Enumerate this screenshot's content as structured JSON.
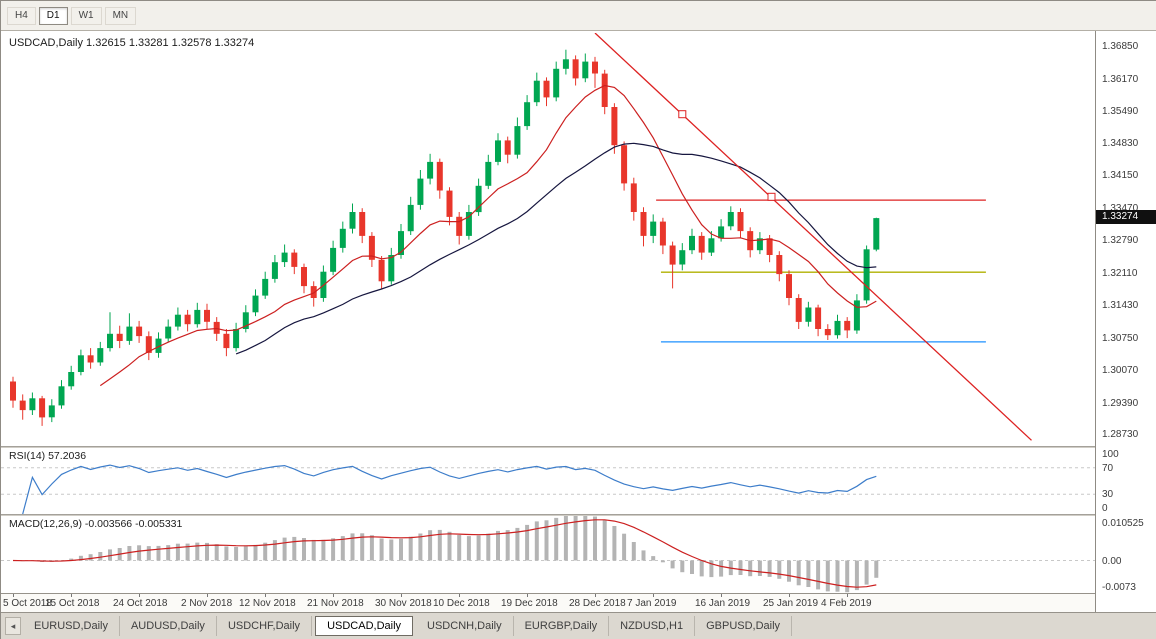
{
  "toolbar": {
    "period_tabs": [
      {
        "label": "H4",
        "active": false
      },
      {
        "label": "D1",
        "active": true
      },
      {
        "label": "W1",
        "active": false
      },
      {
        "label": "MN",
        "active": false
      }
    ]
  },
  "chart": {
    "symbol_label": "USDCAD,Daily",
    "ohlc_label": "1.32615 1.33281 1.32578 1.33274",
    "current_price": "1.33274",
    "price_axis_labels": [
      "1.36850",
      "1.36170",
      "1.35490",
      "1.34830",
      "1.34150",
      "1.33470",
      "1.32790",
      "1.32110",
      "1.31430",
      "1.30750",
      "1.30070",
      "1.29390",
      "1.28730"
    ],
    "price_range": {
      "min": 1.285,
      "max": 1.3715
    },
    "colors": {
      "up": "#00a651",
      "down": "#e8362b",
      "ma_fast": "#cc2020",
      "ma_slow": "#16163f",
      "object_red": "#dd2222",
      "hline_yellow": "#b0b000",
      "hline_blue": "#1e90ff"
    },
    "ma_fast_period": 10,
    "ma_slow_period": 24,
    "candles": [
      [
        1.2985,
        1.2995,
        1.293,
        1.2945
      ],
      [
        1.2945,
        1.2958,
        1.2905,
        1.2925
      ],
      [
        1.2925,
        1.2962,
        1.2915,
        1.295
      ],
      [
        1.295,
        1.2955,
        1.2892,
        1.291
      ],
      [
        1.291,
        1.2948,
        1.29,
        1.2935
      ],
      [
        1.2935,
        1.2988,
        1.2928,
        1.2975
      ],
      [
        1.2975,
        1.3018,
        1.2968,
        1.3005
      ],
      [
        1.3005,
        1.3052,
        1.2998,
        1.304
      ],
      [
        1.304,
        1.3055,
        1.3012,
        1.3025
      ],
      [
        1.3025,
        1.3068,
        1.3018,
        1.3055
      ],
      [
        1.3055,
        1.313,
        1.3048,
        1.3085
      ],
      [
        1.3085,
        1.3102,
        1.3055,
        1.307
      ],
      [
        1.307,
        1.3128,
        1.3062,
        1.31
      ],
      [
        1.31,
        1.3112,
        1.3066,
        1.308
      ],
      [
        1.308,
        1.309,
        1.303,
        1.3045
      ],
      [
        1.3045,
        1.3088,
        1.3035,
        1.3075
      ],
      [
        1.3075,
        1.3115,
        1.3068,
        1.31
      ],
      [
        1.31,
        1.314,
        1.3092,
        1.3125
      ],
      [
        1.3125,
        1.3135,
        1.309,
        1.3105
      ],
      [
        1.3105,
        1.315,
        1.3098,
        1.3135
      ],
      [
        1.3135,
        1.3148,
        1.3095,
        1.311
      ],
      [
        1.311,
        1.312,
        1.307,
        1.3085
      ],
      [
        1.3085,
        1.3095,
        1.3038,
        1.3055
      ],
      [
        1.3055,
        1.3108,
        1.3048,
        1.3095
      ],
      [
        1.3095,
        1.3145,
        1.3088,
        1.313
      ],
      [
        1.313,
        1.3178,
        1.3122,
        1.3165
      ],
      [
        1.3165,
        1.3215,
        1.3158,
        1.32
      ],
      [
        1.32,
        1.325,
        1.3192,
        1.3235
      ],
      [
        1.3235,
        1.3272,
        1.3225,
        1.3255
      ],
      [
        1.3255,
        1.3262,
        1.321,
        1.3225
      ],
      [
        1.3225,
        1.3232,
        1.317,
        1.3185
      ],
      [
        1.3185,
        1.3195,
        1.3142,
        1.316
      ],
      [
        1.316,
        1.3228,
        1.3152,
        1.3215
      ],
      [
        1.3215,
        1.328,
        1.3208,
        1.3265
      ],
      [
        1.3265,
        1.332,
        1.3255,
        1.3305
      ],
      [
        1.3305,
        1.3358,
        1.3295,
        1.334
      ],
      [
        1.334,
        1.3348,
        1.3275,
        1.329
      ],
      [
        1.329,
        1.3298,
        1.3225,
        1.324
      ],
      [
        1.324,
        1.3248,
        1.3178,
        1.3195
      ],
      [
        1.3195,
        1.3265,
        1.3188,
        1.325
      ],
      [
        1.325,
        1.3315,
        1.3242,
        1.33
      ],
      [
        1.33,
        1.3372,
        1.3292,
        1.3355
      ],
      [
        1.3355,
        1.3428,
        1.3345,
        1.341
      ],
      [
        1.341,
        1.3462,
        1.3398,
        1.3445
      ],
      [
        1.3445,
        1.3452,
        1.3368,
        1.3385
      ],
      [
        1.3385,
        1.3392,
        1.3312,
        1.333
      ],
      [
        1.333,
        1.334,
        1.3272,
        1.329
      ],
      [
        1.329,
        1.3355,
        1.3282,
        1.334
      ],
      [
        1.334,
        1.341,
        1.3332,
        1.3395
      ],
      [
        1.3395,
        1.346,
        1.3388,
        1.3445
      ],
      [
        1.3445,
        1.3505,
        1.3438,
        1.349
      ],
      [
        1.349,
        1.3498,
        1.3442,
        1.346
      ],
      [
        1.346,
        1.3538,
        1.3452,
        1.352
      ],
      [
        1.352,
        1.3585,
        1.3512,
        1.357
      ],
      [
        1.357,
        1.3632,
        1.3562,
        1.3615
      ],
      [
        1.3615,
        1.3622,
        1.3562,
        1.358
      ],
      [
        1.358,
        1.3655,
        1.3572,
        1.364
      ],
      [
        1.364,
        1.368,
        1.3628,
        1.366
      ],
      [
        1.366,
        1.3668,
        1.3605,
        1.362
      ],
      [
        1.362,
        1.3672,
        1.3612,
        1.3655
      ],
      [
        1.3655,
        1.3665,
        1.36,
        1.363
      ],
      [
        1.363,
        1.3638,
        1.3545,
        1.356
      ],
      [
        1.356,
        1.3568,
        1.3462,
        1.348
      ],
      [
        1.348,
        1.3488,
        1.3385,
        1.34
      ],
      [
        1.34,
        1.3412,
        1.3322,
        1.334
      ],
      [
        1.334,
        1.335,
        1.3268,
        1.329
      ],
      [
        1.329,
        1.3335,
        1.3275,
        1.332
      ],
      [
        1.332,
        1.3328,
        1.3252,
        1.327
      ],
      [
        1.327,
        1.3278,
        1.318,
        1.323
      ],
      [
        1.323,
        1.3275,
        1.3218,
        1.326
      ],
      [
        1.326,
        1.3305,
        1.3252,
        1.329
      ],
      [
        1.329,
        1.3298,
        1.324,
        1.3255
      ],
      [
        1.3255,
        1.33,
        1.3248,
        1.3285
      ],
      [
        1.3285,
        1.3325,
        1.3278,
        1.331
      ],
      [
        1.331,
        1.3352,
        1.3302,
        1.334
      ],
      [
        1.334,
        1.3348,
        1.3285,
        1.33
      ],
      [
        1.33,
        1.3308,
        1.3245,
        1.326
      ],
      [
        1.326,
        1.3298,
        1.3252,
        1.3285
      ],
      [
        1.3285,
        1.3292,
        1.3235,
        1.325
      ],
      [
        1.325,
        1.3258,
        1.3195,
        1.321
      ],
      [
        1.321,
        1.3218,
        1.3145,
        1.316
      ],
      [
        1.316,
        1.3168,
        1.3095,
        1.311
      ],
      [
        1.311,
        1.3152,
        1.31,
        1.314
      ],
      [
        1.314,
        1.3146,
        1.308,
        1.3095
      ],
      [
        1.3095,
        1.3105,
        1.3072,
        1.3082
      ],
      [
        1.3082,
        1.3125,
        1.3075,
        1.3112
      ],
      [
        1.3112,
        1.312,
        1.3076,
        1.3092
      ],
      [
        1.3092,
        1.3168,
        1.3085,
        1.3155
      ],
      [
        1.3155,
        1.327,
        1.3148,
        1.3262
      ],
      [
        1.32615,
        1.33281,
        1.32578,
        1.33274
      ]
    ],
    "trendline": {
      "from": {
        "i": 60,
        "p": 1.3715
      },
      "to": {
        "i": 105,
        "p": 1.2862
      }
    },
    "trendline_handles": [
      {
        "i": 69,
        "p": 1.3545
      },
      {
        "i": 78.2,
        "p": 1.3372
      }
    ],
    "hlines": [
      {
        "name": "resistance-hline-red",
        "price": 1.3365,
        "color": "#dd2222",
        "from_i": 66.3,
        "to_i": 100.3
      },
      {
        "name": "support-hline-yellow",
        "price": 1.3214,
        "color": "#b0b000",
        "from_i": 66.8,
        "to_i": 100.3
      },
      {
        "name": "support-hline-blue",
        "price": 1.3068,
        "color": "#1e90ff",
        "from_i": 66.8,
        "to_i": 100.3
      }
    ]
  },
  "rsi": {
    "label": "RSI(14) 57.2036",
    "period": 14,
    "levels": [
      70,
      30
    ],
    "axis_labels": [
      "100",
      "70",
      "30",
      "0"
    ],
    "line_color": "#3d7dca"
  },
  "macd": {
    "label": "MACD(12,26,9) -0.003566 -0.005331",
    "fast": 12,
    "slow": 26,
    "signal": 9,
    "range": [
      -0.0078,
      0.0107
    ],
    "axis_labels": [
      "0.010525",
      "0.00",
      "-0.0073"
    ],
    "hist_color": "#b4b4b4",
    "signal_color": "#cc2020"
  },
  "date_axis": {
    "ticks": [
      {
        "index": 0,
        "label": "5 Oct 2018"
      },
      {
        "index": 6,
        "label": "15 Oct 2018"
      },
      {
        "index": 13,
        "label": "24 Oct 2018"
      },
      {
        "index": 20,
        "label": "2 Nov 2018"
      },
      {
        "index": 26,
        "label": "12 Nov 2018"
      },
      {
        "index": 33,
        "label": "21 Nov 2018"
      },
      {
        "index": 40,
        "label": "30 Nov 2018"
      },
      {
        "index": 46,
        "label": "10 Dec 2018"
      },
      {
        "index": 53,
        "label": "19 Dec 2018"
      },
      {
        "index": 60,
        "label": "28 Dec 2018"
      },
      {
        "index": 66,
        "label": "7 Jan 2019"
      },
      {
        "index": 73,
        "label": "16 Jan 2019"
      },
      {
        "index": 80,
        "label": "25 Jan 2019"
      },
      {
        "index": 86,
        "label": "4 Feb 2019"
      }
    ]
  },
  "symbol_tabs": [
    {
      "label": "EURUSD,Daily",
      "active": false
    },
    {
      "label": "AUDUSD,Daily",
      "active": false
    },
    {
      "label": "USDCHF,Daily",
      "active": false
    },
    {
      "label": "USDCAD,Daily",
      "active": true
    },
    {
      "label": "USDCNH,Daily",
      "active": false
    },
    {
      "label": "EURGBP,Daily",
      "active": false
    },
    {
      "label": "NZDUSD,H1",
      "active": false
    },
    {
      "label": "GBPUSD,Daily",
      "active": false
    }
  ],
  "tab_scroll_left_glyph": "◂"
}
